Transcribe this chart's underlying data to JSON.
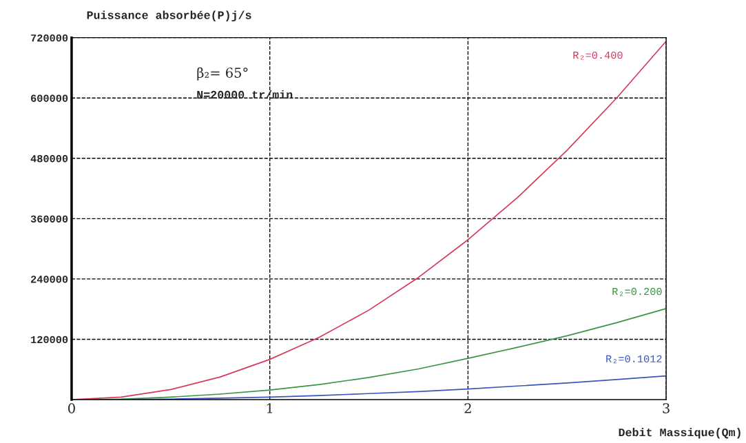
{
  "chart_data": {
    "type": "line",
    "ylabel": "Puissance absorbée(P)j/s",
    "xlabel": "Debit Massique(Qm)",
    "annotations": [
      "β₂= 65°",
      "N=20000 tr/min"
    ],
    "x": [
      0,
      0.25,
      0.5,
      0.75,
      1,
      1.25,
      1.5,
      1.75,
      2,
      2.25,
      2.5,
      2.75,
      3
    ],
    "series": [
      {
        "name": "R₂=0.400",
        "color": "#d6385a",
        "values": [
          0,
          5000,
          20000,
          45000,
          80000,
          124000,
          178000,
          243000,
          318000,
          402000,
          496000,
          600000,
          713000
        ]
      },
      {
        "name": "R₂=0.200",
        "color": "#3a9440",
        "values": [
          0,
          1000,
          5000,
          11000,
          19000,
          30000,
          44000,
          61000,
          82000,
          104000,
          127000,
          153000,
          181000
        ]
      },
      {
        "name": "R₂=0.1012",
        "color": "#3a56b8",
        "values": [
          0,
          null,
          1000,
          3000,
          5000,
          8000,
          12000,
          16000,
          21000,
          27000,
          33000,
          40000,
          47000
        ]
      }
    ],
    "xlim": [
      0,
      3
    ],
    "xticks": [
      0,
      1,
      2,
      3
    ],
    "ylim": [
      0,
      720000
    ],
    "yticks": [
      120000,
      240000,
      360000,
      480000,
      600000,
      720000
    ],
    "grid": true,
    "legend": false
  }
}
